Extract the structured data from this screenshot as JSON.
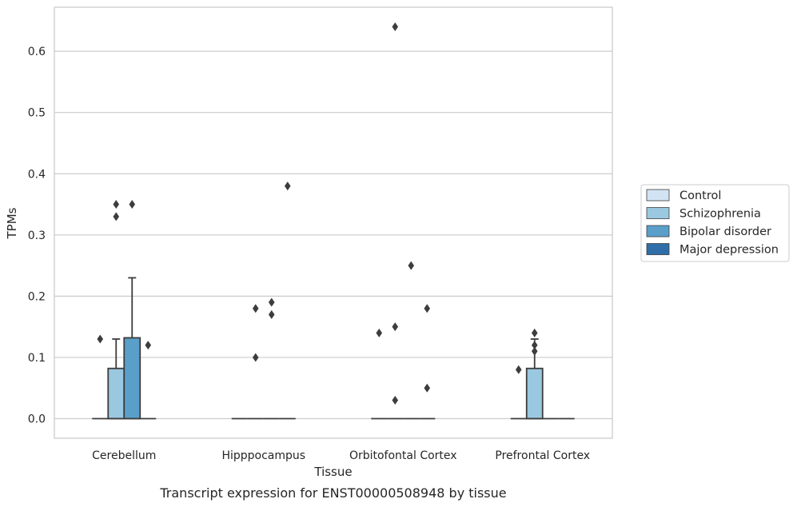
{
  "caption": "Transcript expression for ENST00000508948 by tissue",
  "colors": {
    "grid": "#cccccc",
    "frame": "#cccccc",
    "box_edge": "#3d3d3d",
    "outlier": "#3d3d3d"
  },
  "chart_data": {
    "type": "box",
    "xlabel": "Tissue",
    "ylabel": "TPMs",
    "ylim": [
      -0.032,
      0.672
    ],
    "yticks": [
      0.0,
      0.1,
      0.2,
      0.3,
      0.4,
      0.5,
      0.6
    ],
    "ytick_labels": [
      "0.0",
      "0.1",
      "0.2",
      "0.3",
      "0.4",
      "0.5",
      "0.6"
    ],
    "grid": "horizontal",
    "legend_position": "right",
    "categories": [
      "Cerebellum",
      "Hipppocampus",
      "Orbitofontal Cortex",
      "Prefrontal Cortex"
    ],
    "series": [
      {
        "name": "Control",
        "color": "#d2e3f3"
      },
      {
        "name": "Schizophrenia",
        "color": "#9ac8e0"
      },
      {
        "name": "Bipolar disorder",
        "color": "#5a9fca"
      },
      {
        "name": "Major depression",
        "color": "#2f6ea8"
      }
    ],
    "boxes": [
      [
        {
          "q1": 0,
          "median": 0,
          "q3": 0,
          "whisker_low": 0,
          "whisker_high": 0,
          "outliers": [
            0.13
          ]
        },
        {
          "q1": 0,
          "median": 0,
          "q3": 0.082,
          "whisker_low": 0,
          "whisker_high": 0.13,
          "outliers": [
            0.33,
            0.35
          ]
        },
        {
          "q1": 0,
          "median": 0,
          "q3": 0.132,
          "whisker_low": 0,
          "whisker_high": 0.23,
          "outliers": [
            0.35
          ]
        },
        {
          "q1": 0,
          "median": 0,
          "q3": 0,
          "whisker_low": 0,
          "whisker_high": 0,
          "outliers": [
            0.12
          ]
        }
      ],
      [
        {
          "q1": 0,
          "median": 0,
          "q3": 0,
          "whisker_low": 0,
          "whisker_high": 0,
          "outliers": []
        },
        {
          "q1": 0,
          "median": 0,
          "q3": 0,
          "whisker_low": 0,
          "whisker_high": 0,
          "outliers": [
            0.18,
            0.1
          ]
        },
        {
          "q1": 0,
          "median": 0,
          "q3": 0,
          "whisker_low": 0,
          "whisker_high": 0,
          "outliers": [
            0.19,
            0.17
          ]
        },
        {
          "q1": 0,
          "median": 0,
          "q3": 0,
          "whisker_low": 0,
          "whisker_high": 0,
          "outliers": [
            0.38
          ]
        }
      ],
      [
        {
          "q1": 0,
          "median": 0,
          "q3": 0,
          "whisker_low": 0,
          "whisker_high": 0,
          "outliers": [
            0.14
          ]
        },
        {
          "q1": 0,
          "median": 0,
          "q3": 0,
          "whisker_low": 0,
          "whisker_high": 0,
          "outliers": [
            0.64,
            0.15,
            0.03
          ]
        },
        {
          "q1": 0,
          "median": 0,
          "q3": 0,
          "whisker_low": 0,
          "whisker_high": 0,
          "outliers": [
            0.25
          ]
        },
        {
          "q1": 0,
          "median": 0,
          "q3": 0,
          "whisker_low": 0,
          "whisker_high": 0,
          "outliers": [
            0.18,
            0.05
          ]
        }
      ],
      [
        {
          "q1": 0,
          "median": 0,
          "q3": 0,
          "whisker_low": 0,
          "whisker_high": 0,
          "outliers": [
            0.08
          ]
        },
        {
          "q1": 0,
          "median": 0,
          "q3": 0.082,
          "whisker_low": 0,
          "whisker_high": 0.13,
          "outliers": [
            0.14,
            0.12,
            0.11
          ]
        },
        {
          "q1": 0,
          "median": 0,
          "q3": 0,
          "whisker_low": 0,
          "whisker_high": 0,
          "outliers": []
        },
        {
          "q1": 0,
          "median": 0,
          "q3": 0,
          "whisker_low": 0,
          "whisker_high": 0,
          "outliers": []
        }
      ]
    ]
  }
}
